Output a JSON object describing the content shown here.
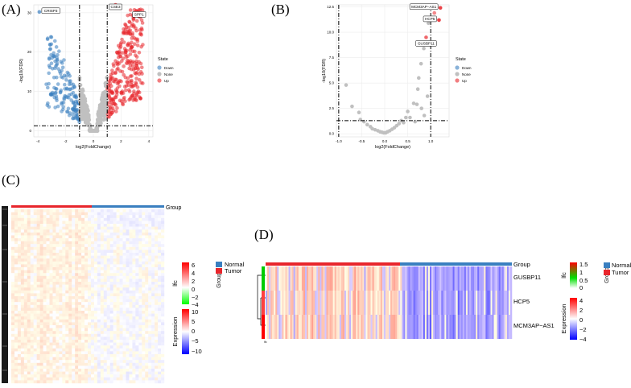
{
  "figure": {
    "panel_labels": [
      "(A)",
      "(B)",
      "(C)",
      "(D)"
    ]
  },
  "colors": {
    "down": "#3a7fc0",
    "none": "#c0c0c0",
    "up": "#e8262c",
    "normal": "#3a7fc0",
    "tumor": "#e8262c",
    "heat_high": "#ff0000",
    "heat_low": "#0000ff",
    "lfc_high": "#ff0000",
    "lfc_low": "#ffffff"
  },
  "chart_data": [
    {
      "type": "scatter",
      "panel": "(A)",
      "xlabel": "log2(FoldChange)",
      "ylabel": "-log10(FDR)",
      "xlim": [
        -4.3,
        4.3
      ],
      "ylim": [
        -1.5,
        32
      ],
      "x_ticks": [
        "-4",
        "-2",
        "0",
        "2",
        "4"
      ],
      "y_ticks": [
        "0",
        "10",
        "20",
        "30"
      ],
      "thresholds": {
        "x": [
          -1,
          1
        ],
        "y": 1.3
      },
      "legend": {
        "title": "State",
        "entries": [
          "Down",
          "None",
          "Up"
        ],
        "position": "right"
      },
      "annotations": [
        {
          "text": "CRISP3",
          "x": -3.9,
          "y": 30.2
        },
        {
          "text": "CSE3",
          "x": 1.6,
          "y": 32.0
        },
        {
          "text": "SPP1",
          "x": 3.3,
          "y": 30.7
        }
      ]
    },
    {
      "type": "scatter",
      "panel": "(B)",
      "xlabel": "log2(FoldChange)",
      "ylabel": "-log10(FDR)",
      "xlim": [
        -1.05,
        1.4
      ],
      "ylim": [
        -0.3,
        12.7
      ],
      "x_ticks": [
        "-1.0",
        "-0.5",
        "0.0",
        "0.5",
        "1.0"
      ],
      "y_ticks": [
        "0.0",
        "2.5",
        "5.0",
        "7.5",
        "10.0",
        "12.5"
      ],
      "thresholds": {
        "x": [
          -1,
          1
        ],
        "y": 1.3
      },
      "legend": {
        "title": "State",
        "entries": [
          "Down",
          "None",
          "Up"
        ],
        "position": "right"
      },
      "annotations": [
        {
          "text": "MCM3AP−AS1",
          "x": 1.21,
          "y": 12.4
        },
        {
          "text": "HCP5",
          "x": 1.18,
          "y": 11.2
        },
        {
          "text": "GUSBP11",
          "x": 0.9,
          "y": 9.5
        }
      ],
      "points": [
        [
          1.21,
          12.4
        ],
        [
          1.18,
          11.2
        ],
        [
          1.08,
          11.9
        ],
        [
          0.95,
          10.9
        ],
        [
          1.02,
          8.9
        ],
        [
          0.85,
          8.4
        ],
        [
          0.79,
          6.9
        ],
        [
          0.74,
          5.5
        ],
        [
          0.72,
          4.4
        ],
        [
          0.93,
          3.7
        ],
        [
          0.63,
          3.0
        ],
        [
          0.8,
          2.5
        ],
        [
          0.86,
          1.8
        ],
        [
          0.55,
          1.6
        ],
        [
          -0.84,
          4.8
        ],
        [
          -0.71,
          2.7
        ],
        [
          -0.56,
          2.1
        ],
        [
          -0.53,
          1.4
        ],
        [
          -0.38,
          0.9
        ],
        [
          -0.31,
          0.7
        ],
        [
          -0.27,
          0.5
        ],
        [
          -0.21,
          0.4
        ],
        [
          -0.15,
          0.3
        ],
        [
          -0.1,
          0.2
        ],
        [
          -0.06,
          0.15
        ],
        [
          -0.02,
          0.1
        ],
        [
          0.02,
          0.1
        ],
        [
          0.06,
          0.2
        ],
        [
          0.11,
          0.3
        ],
        [
          0.16,
          0.45
        ],
        [
          0.21,
          0.6
        ],
        [
          0.26,
          0.8
        ],
        [
          0.31,
          1.0
        ],
        [
          0.36,
          1.3
        ],
        [
          0.41,
          1.1
        ],
        [
          0.46,
          1.6
        ],
        [
          -0.45,
          1.2
        ],
        [
          0.5,
          2.2
        ],
        [
          0.66,
          1.2
        ],
        [
          0.7,
          2.9
        ]
      ]
    },
    {
      "type": "heatmap",
      "panel": "(C)",
      "annotation_label": "Group",
      "groups": [
        {
          "name": "Tumor",
          "fraction": 0.5
        },
        {
          "name": "Normal",
          "fraction": 0.5
        }
      ],
      "group_legend": {
        "title": "Group",
        "entries": [
          "Normal",
          "Tumor"
        ]
      },
      "lfc_legend": {
        "title": "lfc",
        "ticks": [
          "6",
          "4",
          "2",
          "0",
          "−2",
          "−4"
        ]
      },
      "expression_legend": {
        "title": "Expression",
        "ticks": [
          "10",
          "5",
          "0",
          "−5",
          "−10"
        ]
      }
    },
    {
      "type": "heatmap",
      "panel": "(D)",
      "annotation_label": "Group",
      "rows": [
        "GUSBP11",
        "HCP5",
        "MCM3AP−AS1"
      ],
      "lfc": [
        0.85,
        1.18,
        1.21
      ],
      "row_annotation_label": "lfc",
      "groups": [
        {
          "name": "Tumor",
          "fraction": 0.5
        },
        {
          "name": "Normal",
          "fraction": 0.5
        }
      ],
      "group_legend": {
        "title": "Group",
        "entries": [
          "Normal",
          "Tumor"
        ]
      },
      "lfc_legend": {
        "title": "lfc",
        "ticks": [
          "1.5",
          "1",
          "0.5",
          "0"
        ]
      },
      "expression_legend": {
        "title": "Expression",
        "ticks": [
          "4",
          "2",
          "0",
          "−2",
          "−4"
        ]
      }
    }
  ]
}
